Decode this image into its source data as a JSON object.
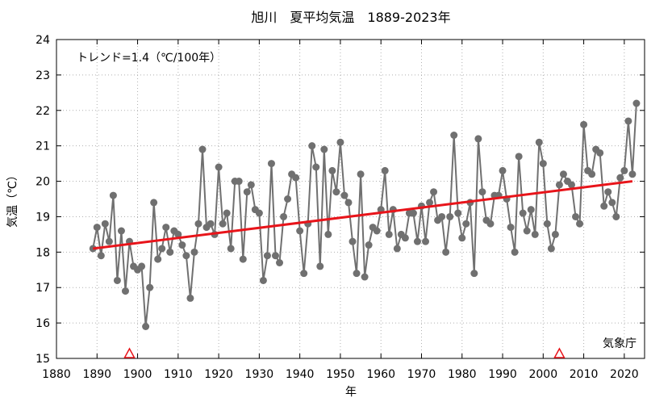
{
  "chart_data": {
    "type": "line",
    "title": "旭川　夏平均気温　1889-2023年",
    "xlabel": "年",
    "ylabel": "気温（℃）",
    "annotation": "トレンド=1.4（℃/100年）",
    "source": "気象庁",
    "xlim": [
      1880,
      2025
    ],
    "ylim": [
      15,
      24
    ],
    "xticks": [
      1880,
      1890,
      1900,
      1910,
      1920,
      1930,
      1940,
      1950,
      1960,
      1970,
      1980,
      1990,
      2000,
      2010,
      2020
    ],
    "yticks": [
      15,
      16,
      17,
      18,
      19,
      20,
      21,
      22,
      23,
      24
    ],
    "grid": true,
    "colors": {
      "series": "#707070",
      "trend": "#e8141a",
      "marker": "#e8141a"
    },
    "markers_years": [
      1898,
      2004
    ],
    "trend": {
      "start": [
        1889,
        18.1
      ],
      "end": [
        2022,
        20.0
      ]
    },
    "series": [
      {
        "x": [
          1889,
          1890,
          1891,
          1892,
          1893,
          1894,
          1895,
          1896,
          1897,
          1898,
          1899,
          1900,
          1901,
          1902,
          1903,
          1904,
          1905,
          1906,
          1907,
          1908,
          1909,
          1910,
          1911,
          1912,
          1913,
          1914,
          1915,
          1916,
          1917,
          1918,
          1919,
          1920,
          1921,
          1922,
          1923,
          1924,
          1925,
          1926,
          1927,
          1928,
          1929,
          1930,
          1931,
          1932,
          1933,
          1934,
          1935,
          1936,
          1937,
          1938,
          1939,
          1940,
          1941,
          1942,
          1943,
          1944,
          1945,
          1946,
          1947,
          1948,
          1949,
          1950,
          1951,
          1952,
          1953,
          1954,
          1955,
          1956,
          1957,
          1958,
          1959,
          1960,
          1961,
          1962,
          1963,
          1964,
          1965,
          1966,
          1967,
          1968,
          1969,
          1970,
          1971,
          1972,
          1973,
          1974,
          1975,
          1976,
          1977,
          1978,
          1979,
          1980,
          1981,
          1982,
          1983,
          1984,
          1985,
          1986,
          1987,
          1988,
          1989,
          1990,
          1991,
          1992,
          1993,
          1994,
          1995,
          1996,
          1997,
          1998,
          1999,
          2000,
          2001,
          2002,
          2003,
          2004,
          2005,
          2006,
          2007,
          2008,
          2009,
          2010,
          2011,
          2012,
          2013,
          2014,
          2015,
          2016,
          2017,
          2018,
          2019,
          2020,
          2021,
          2022,
          2023
        ],
        "values": [
          18.1,
          18.7,
          17.9,
          18.8,
          18.3,
          19.6,
          17.2,
          18.6,
          16.9,
          18.3,
          17.6,
          17.5,
          17.6,
          15.9,
          17.0,
          19.4,
          17.8,
          18.1,
          18.7,
          18.0,
          18.6,
          18.5,
          18.2,
          17.9,
          16.7,
          18.0,
          18.8,
          20.9,
          18.7,
          18.8,
          18.5,
          20.4,
          18.8,
          19.1,
          18.1,
          20.0,
          20.0,
          17.8,
          19.7,
          19.9,
          19.2,
          19.1,
          17.2,
          17.9,
          20.5,
          17.9,
          17.7,
          19.0,
          19.5,
          20.2,
          20.1,
          18.6,
          17.4,
          18.8,
          21.0,
          20.4,
          17.6,
          20.9,
          18.5,
          20.3,
          19.7,
          21.1,
          19.6,
          19.4,
          18.3,
          17.4,
          20.2,
          17.3,
          18.2,
          18.7,
          18.6,
          19.2,
          20.3,
          18.5,
          19.2,
          18.1,
          18.5,
          18.4,
          19.1,
          19.1,
          18.3,
          19.3,
          18.3,
          19.4,
          19.7,
          18.9,
          19.0,
          18.0,
          19.0,
          21.3,
          19.1,
          18.4,
          18.8,
          19.4,
          17.4,
          21.2,
          19.7,
          18.9,
          18.8,
          19.6,
          19.6,
          20.3,
          19.5,
          18.7,
          18.0,
          20.7,
          19.1,
          18.6,
          19.2,
          18.5,
          21.1,
          20.5,
          18.8,
          18.1,
          18.5,
          19.9,
          20.2,
          20.0,
          19.9,
          19.0,
          18.8,
          21.6,
          20.3,
          20.2,
          20.9,
          20.8,
          19.3,
          19.7,
          19.4,
          19.0,
          20.1,
          20.3,
          21.7,
          20.2,
          22.2
        ]
      }
    ]
  }
}
